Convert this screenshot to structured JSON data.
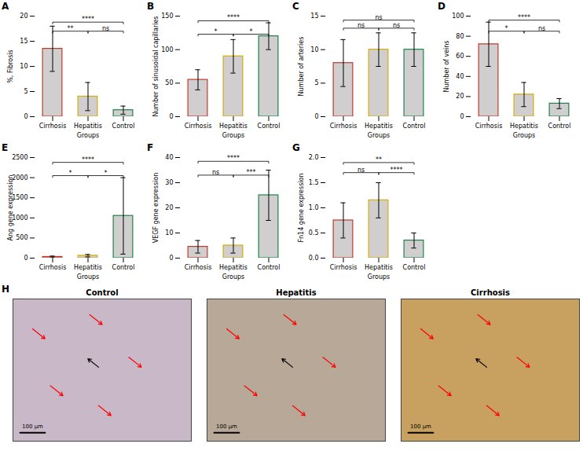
{
  "chart_data": [
    {
      "type": "bar",
      "title": "A",
      "xlabel": "Groups",
      "ylabel": "%, Fibrosis",
      "categories": [
        "Cirrhosis",
        "Hepatitis",
        "Control"
      ],
      "values": [
        13.5,
        4.0,
        1.3
      ],
      "errors": [
        4.5,
        2.8,
        0.8
      ],
      "color": "#d0cece",
      "colors": [
        "#c0392b",
        "#d4ac0d",
        "#1e8449"
      ],
      "ylim": [
        0,
        20
      ],
      "yticks": [
        0,
        5,
        10,
        15,
        20
      ],
      "grid": false,
      "annotations": [
        {
          "x1": "Cirrhosis",
          "x2": "Hepatitis",
          "y": 17.0,
          "label": "**"
        },
        {
          "x1": "Hepatitis",
          "x2": "Control",
          "y": 17.0,
          "label": "ns"
        },
        {
          "x1": "Cirrhosis",
          "x2": "Control",
          "y": 18.8,
          "label": "****"
        }
      ]
    },
    {
      "type": "bar",
      "title": "B",
      "xlabel": "Groups",
      "ylabel": "Number of sinusoidal capillaries",
      "categories": [
        "Cirrhosis",
        "Hepatitis",
        "Control"
      ],
      "values": [
        55,
        90,
        120
      ],
      "errors": [
        15,
        25,
        20
      ],
      "color": "#d0cece",
      "colors": [
        "#c0392b",
        "#d4ac0d",
        "#1e8449"
      ],
      "ylim": [
        0,
        150
      ],
      "yticks": [
        0,
        50,
        100,
        150
      ],
      "grid": false,
      "annotations": [
        {
          "x1": "Cirrhosis",
          "x2": "Hepatitis",
          "y": 123,
          "label": "*"
        },
        {
          "x1": "Hepatitis",
          "x2": "Control",
          "y": 123,
          "label": "*"
        },
        {
          "x1": "Cirrhosis",
          "x2": "Control",
          "y": 143,
          "label": "****"
        }
      ]
    },
    {
      "type": "bar",
      "title": "C",
      "xlabel": "Groups",
      "ylabel": "Number of arteries",
      "categories": [
        "Cirrhosis",
        "Hepatitis",
        "Control"
      ],
      "values": [
        8.0,
        10.0,
        10.0
      ],
      "errors": [
        3.5,
        2.5,
        2.5
      ],
      "color": "#d0cece",
      "colors": [
        "#c0392b",
        "#d4ac0d",
        "#1e8449"
      ],
      "ylim": [
        0,
        15
      ],
      "yticks": [
        0,
        5,
        10,
        15
      ],
      "grid": false,
      "annotations": [
        {
          "x1": "Cirrhosis",
          "x2": "Hepatitis",
          "y": 13.2,
          "label": "ns"
        },
        {
          "x1": "Hepatitis",
          "x2": "Control",
          "y": 13.2,
          "label": "ns"
        },
        {
          "x1": "Cirrhosis",
          "x2": "Control",
          "y": 14.4,
          "label": "ns"
        }
      ]
    },
    {
      "type": "bar",
      "title": "D",
      "xlabel": "Groups",
      "ylabel": "Number of veins",
      "categories": [
        "Cirrhosis",
        "Hepatitis",
        "Control"
      ],
      "values": [
        72,
        22,
        13
      ],
      "errors": [
        22,
        12,
        5
      ],
      "color": "#d0cece",
      "colors": [
        "#c0392b",
        "#d4ac0d",
        "#1e8449"
      ],
      "ylim": [
        0,
        100
      ],
      "yticks": [
        0,
        20,
        40,
        60,
        80,
        100
      ],
      "grid": false,
      "annotations": [
        {
          "x1": "Cirrhosis",
          "x2": "Hepatitis",
          "y": 85,
          "label": "*"
        },
        {
          "x1": "Hepatitis",
          "x2": "Control",
          "y": 85,
          "label": "ns"
        },
        {
          "x1": "Cirrhosis",
          "x2": "Control",
          "y": 96,
          "label": "****"
        }
      ]
    },
    {
      "type": "bar",
      "title": "E",
      "xlabel": "Groups",
      "ylabel": "Ang gene expression",
      "categories": [
        "Cirrhosis",
        "Hepatitis",
        "Control"
      ],
      "values": [
        30,
        60,
        1050
      ],
      "errors": [
        20,
        30,
        950
      ],
      "color": "#d0cece",
      "colors": [
        "#c0392b",
        "#d4ac0d",
        "#1e8449"
      ],
      "ylim": [
        0,
        2500
      ],
      "yticks": [
        0,
        500,
        1000,
        1500,
        2000,
        2500
      ],
      "grid": false,
      "annotations": [
        {
          "x1": "Cirrhosis",
          "x2": "Hepatitis",
          "y": 2050,
          "label": "*"
        },
        {
          "x1": "Hepatitis",
          "x2": "Control",
          "y": 2050,
          "label": "*"
        },
        {
          "x1": "Cirrhosis",
          "x2": "Control",
          "y": 2380,
          "label": "****"
        }
      ]
    },
    {
      "type": "bar",
      "title": "F",
      "xlabel": "Groups",
      "ylabel": "VEGF gene expression",
      "categories": [
        "Cirrhosis",
        "Hepatitis",
        "Control"
      ],
      "values": [
        4.5,
        5.0,
        25.0
      ],
      "errors": [
        2.5,
        3.0,
        10.0
      ],
      "color": "#d0cece",
      "colors": [
        "#c0392b",
        "#d4ac0d",
        "#1e8449"
      ],
      "ylim": [
        0,
        40
      ],
      "yticks": [
        0,
        10,
        20,
        30,
        40
      ],
      "grid": false,
      "annotations": [
        {
          "x1": "Cirrhosis",
          "x2": "Hepatitis",
          "y": 33,
          "label": "ns"
        },
        {
          "x1": "Hepatitis",
          "x2": "Control",
          "y": 33,
          "label": "***"
        },
        {
          "x1": "Cirrhosis",
          "x2": "Control",
          "y": 38.5,
          "label": "****"
        }
      ]
    },
    {
      "type": "bar",
      "title": "G",
      "xlabel": "Groups",
      "ylabel": "Fn14 gene expression",
      "categories": [
        "Cirrhosis",
        "Hepatitis",
        "Control"
      ],
      "values": [
        0.75,
        1.15,
        0.35
      ],
      "errors": [
        0.35,
        0.35,
        0.15
      ],
      "color": "#d0cece",
      "colors": [
        "#c0392b",
        "#d4ac0d",
        "#1e8449"
      ],
      "ylim": [
        0.0,
        2.0
      ],
      "yticks": [
        {
          "value": 0,
          "label": "0.0"
        },
        {
          "value": 0.5,
          "label": "0.5"
        },
        {
          "value": 1,
          "label": "1.0"
        },
        {
          "value": 1.5,
          "label": "1.5"
        },
        {
          "value": 2,
          "label": "2.0"
        }
      ],
      "grid": false,
      "annotations": [
        {
          "x1": "Cirrhosis",
          "x2": "Hepatitis",
          "y": 1.7,
          "label": "ns"
        },
        {
          "x1": "Hepatitis",
          "x2": "Control",
          "y": 1.7,
          "label": "****"
        },
        {
          "x1": "Cirrhosis",
          "x2": "Control",
          "y": 1.9,
          "label": "**"
        }
      ]
    },
    {
      "type": "image",
      "title": "H",
      "categories": [
        "Control",
        "Hepatitis",
        "Cirrhosis"
      ],
      "colors": [
        "#c8b8c8",
        "#b8a898",
        "#c8a060"
      ],
      "annotations": [
        "100 μm"
      ],
      "tick_labels": false
    }
  ]
}
